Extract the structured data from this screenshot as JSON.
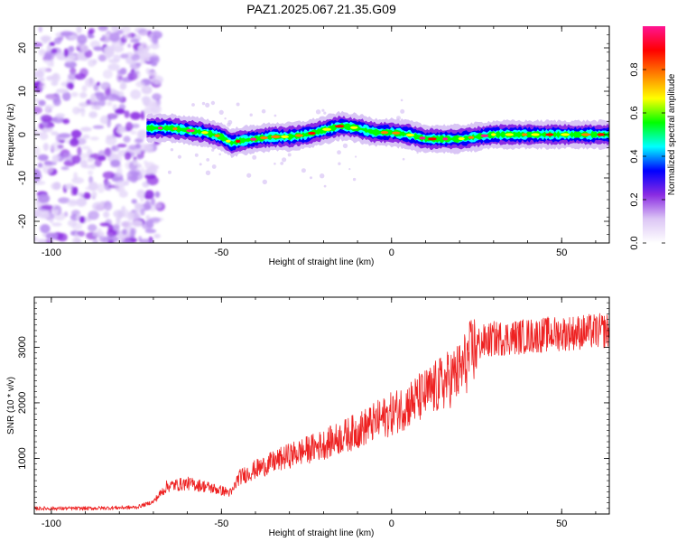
{
  "title": "PAZ1.2025.067.21.35.G09",
  "chart_data": [
    {
      "type": "heatmap",
      "xlabel": "Height of straight line (km)",
      "ylabel": "Frequency (Hz)",
      "xlim": [
        -105,
        64
      ],
      "ylim": [
        -25,
        25
      ],
      "xticks": [
        -100,
        -50,
        0,
        50
      ],
      "yticks": [
        -20,
        -10,
        0,
        10,
        20
      ],
      "colorbar": {
        "label": "Normalized spectral amplitude",
        "range": [
          0,
          1
        ],
        "ticks": [
          0.0,
          0.2,
          0.4,
          0.6,
          0.8
        ],
        "tick_labels": [
          "0.0",
          "0.2",
          "0.4",
          "0.6",
          "0.8"
        ],
        "colors": [
          "#ffffff",
          "#dcc6f5",
          "#8a2be2",
          "#0000ff",
          "#00ffff",
          "#00ff00",
          "#ffff00",
          "#ff8000",
          "#ff0000",
          "#ff1493"
        ]
      },
      "ridge": {
        "x": [
          -72,
          -65,
          -60,
          -55,
          -50,
          -47,
          -45,
          -40,
          -35,
          -30,
          -25,
          -20,
          -15,
          -10,
          -5,
          0,
          5,
          10,
          15,
          20,
          25,
          30,
          35,
          40,
          45,
          50,
          55,
          60,
          64
        ],
        "frequency": [
          1.5,
          1.5,
          1.0,
          0.5,
          -0.5,
          -2,
          -1.5,
          -1,
          -0.5,
          -0.5,
          0,
          1,
          2,
          1.5,
          0.5,
          0.5,
          0,
          -1,
          -1,
          -1,
          -0.5,
          0,
          0,
          0,
          0,
          0,
          0,
          0,
          0
        ]
      },
      "noise_region": [
        -105,
        -68
      ]
    },
    {
      "type": "line",
      "xlabel": "Height of straight line (km)",
      "ylabel": "SNR (10 * v/v)",
      "xlim": [
        -105,
        64
      ],
      "ylim": [
        0,
        3900
      ],
      "xticks": [
        -100,
        -50,
        0,
        50
      ],
      "yticks": [
        1000,
        2000,
        3000
      ],
      "color": "#ee2222",
      "trend": {
        "x": [
          -105,
          -90,
          -75,
          -70,
          -66,
          -60,
          -55,
          -50,
          -47,
          -45,
          -40,
          -30,
          -20,
          -10,
          0,
          10,
          20,
          25,
          30,
          40,
          50,
          64
        ],
        "snr": [
          100,
          100,
          120,
          220,
          500,
          550,
          500,
          420,
          380,
          650,
          800,
          1050,
          1250,
          1500,
          1800,
          2150,
          2550,
          3050,
          3150,
          3200,
          3250,
          3300
        ]
      }
    }
  ]
}
